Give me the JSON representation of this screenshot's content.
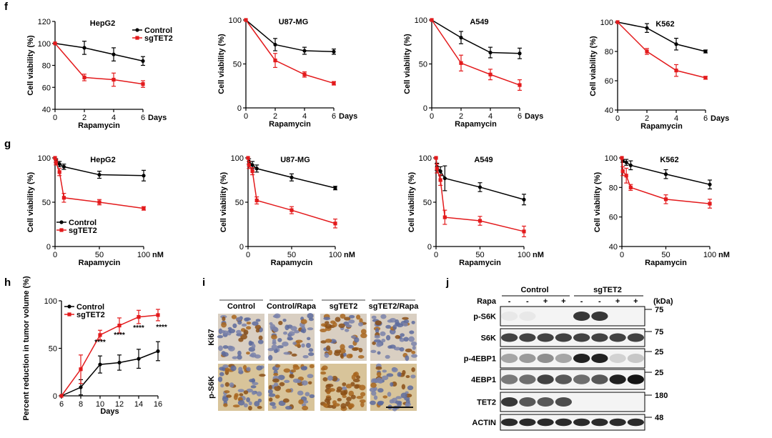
{
  "panel_labels": {
    "f": "f",
    "g": "g",
    "h": "h",
    "i": "i",
    "j": "j"
  },
  "colors": {
    "control": "#000000",
    "sgTET2": "#e31a1c",
    "blot_band": "#1a1a1a",
    "ihc_brown": "#9a5a1a",
    "ihc_blue": "#5a6aa0"
  },
  "chart_data": [
    {
      "id": "f-hepg2",
      "type": "line",
      "title": "HepG2",
      "xlabel": "Rapamycin",
      "ylabel": "Cell viability (%)",
      "x_unit": "Days",
      "x": [
        0,
        2,
        4,
        6
      ],
      "xticks": [
        0,
        2,
        4,
        6
      ],
      "xlim": [
        0,
        6
      ],
      "yticks": [
        40,
        60,
        80,
        100,
        120
      ],
      "ylim": [
        40,
        120
      ],
      "legend": [
        "Control",
        "sgTET2"
      ],
      "legend_position": "top-right",
      "series": [
        {
          "name": "Control",
          "color": "#000000",
          "values": [
            100,
            96,
            90,
            84
          ],
          "err": [
            0,
            6,
            6,
            4
          ]
        },
        {
          "name": "sgTET2",
          "color": "#e31a1c",
          "values": [
            100,
            69,
            67,
            63
          ],
          "err": [
            0,
            3,
            6,
            3
          ]
        }
      ]
    },
    {
      "id": "f-u87",
      "type": "line",
      "title": "U87-MG",
      "xlabel": "Rapamycin",
      "ylabel": "Cell viability (%)",
      "x_unit": "Days",
      "x": [
        0,
        2,
        4,
        6
      ],
      "xticks": [
        0,
        2,
        4,
        6
      ],
      "xlim": [
        0,
        6
      ],
      "yticks": [
        0,
        50,
        100
      ],
      "ylim": [
        0,
        100
      ],
      "legend": [],
      "legend_position": "",
      "series": [
        {
          "name": "Control",
          "color": "#000000",
          "values": [
            100,
            72,
            65,
            64
          ],
          "err": [
            0,
            7,
            4,
            3
          ]
        },
        {
          "name": "sgTET2",
          "color": "#e31a1c",
          "values": [
            100,
            54,
            38,
            28
          ],
          "err": [
            0,
            8,
            3,
            2
          ]
        }
      ]
    },
    {
      "id": "f-a549",
      "type": "line",
      "title": "A549",
      "xlabel": "Rapamycin",
      "ylabel": "Cell viability (%)",
      "x_unit": "Days",
      "x": [
        0,
        2,
        4,
        6
      ],
      "xticks": [
        0,
        2,
        4,
        6
      ],
      "xlim": [
        0,
        6
      ],
      "yticks": [
        0,
        50,
        100
      ],
      "ylim": [
        0,
        100
      ],
      "legend": [],
      "legend_position": "",
      "series": [
        {
          "name": "Control",
          "color": "#000000",
          "values": [
            100,
            80,
            63,
            62
          ],
          "err": [
            0,
            7,
            6,
            6
          ]
        },
        {
          "name": "sgTET2",
          "color": "#e31a1c",
          "values": [
            100,
            51,
            38,
            26
          ],
          "err": [
            0,
            9,
            6,
            6
          ]
        }
      ]
    },
    {
      "id": "f-k562",
      "type": "line",
      "title": "K562",
      "xlabel": "Rapamycin",
      "ylabel": "Cell viability (%)",
      "x_unit": "Days",
      "x": [
        0,
        2,
        4,
        6
      ],
      "xticks": [
        0,
        2,
        4,
        6
      ],
      "xlim": [
        0,
        6
      ],
      "yticks": [
        40,
        60,
        80,
        100
      ],
      "ylim": [
        40,
        100
      ],
      "legend": [],
      "legend_position": "",
      "series": [
        {
          "name": "Control",
          "color": "#000000",
          "values": [
            100,
            96,
            85,
            80
          ],
          "err": [
            0,
            3,
            4,
            1
          ]
        },
        {
          "name": "sgTET2",
          "color": "#e31a1c",
          "values": [
            100,
            80,
            67,
            62
          ],
          "err": [
            0,
            2,
            4,
            1
          ]
        }
      ]
    },
    {
      "id": "g-hepg2",
      "type": "line",
      "title": "HepG2",
      "xlabel": "Rapamycin",
      "ylabel": "Cell viability (%)",
      "x_unit": "nM",
      "x": [
        0,
        1,
        5,
        10,
        50,
        100
      ],
      "xticks": [
        0,
        50,
        100
      ],
      "xlim": [
        0,
        100
      ],
      "yticks": [
        0,
        50,
        100
      ],
      "ylim": [
        0,
        100
      ],
      "legend": [
        "Control",
        "sgTET2"
      ],
      "legend_position": "bottom-left",
      "series": [
        {
          "name": "Control",
          "color": "#000000",
          "values": [
            100,
            97,
            93,
            90,
            81,
            80
          ],
          "err": [
            0,
            2,
            3,
            3,
            4,
            6
          ]
        },
        {
          "name": "sgTET2",
          "color": "#e31a1c",
          "values": [
            100,
            95,
            84,
            55,
            50,
            43
          ],
          "err": [
            0,
            3,
            4,
            5,
            3,
            2
          ]
        }
      ]
    },
    {
      "id": "g-u87",
      "type": "line",
      "title": "U87-MG",
      "xlabel": "Rapamycin",
      "ylabel": "Cell viability (%)",
      "x_unit": "nM",
      "x": [
        0,
        1,
        5,
        10,
        50,
        100
      ],
      "xticks": [
        0,
        50,
        100
      ],
      "xlim": [
        0,
        100
      ],
      "yticks": [
        0,
        50,
        100
      ],
      "ylim": [
        0,
        100
      ],
      "legend": [],
      "legend_position": "",
      "series": [
        {
          "name": "Control",
          "color": "#000000",
          "values": [
            100,
            96,
            92,
            88,
            78,
            66
          ],
          "err": [
            0,
            3,
            4,
            4,
            4,
            2
          ]
        },
        {
          "name": "sgTET2",
          "color": "#e31a1c",
          "values": [
            100,
            92,
            85,
            52,
            41,
            26
          ],
          "err": [
            0,
            4,
            4,
            4,
            4,
            5
          ]
        }
      ]
    },
    {
      "id": "g-a549",
      "type": "line",
      "title": "A549",
      "xlabel": "Rapamycin",
      "ylabel": "Cell viability (%)",
      "x_unit": "nM",
      "x": [
        0,
        1,
        5,
        10,
        50,
        100
      ],
      "xticks": [
        0,
        50,
        100
      ],
      "xlim": [
        0,
        100
      ],
      "yticks": [
        0,
        50,
        100
      ],
      "ylim": [
        0,
        100
      ],
      "legend": [],
      "legend_position": "",
      "series": [
        {
          "name": "Control",
          "color": "#000000",
          "values": [
            100,
            90,
            85,
            77,
            67,
            53
          ],
          "err": [
            0,
            4,
            5,
            14,
            5,
            6
          ]
        },
        {
          "name": "sgTET2",
          "color": "#e31a1c",
          "values": [
            100,
            88,
            75,
            33,
            29,
            17
          ],
          "err": [
            0,
            5,
            6,
            8,
            5,
            6
          ]
        }
      ]
    },
    {
      "id": "g-k562",
      "type": "line",
      "title": "K562",
      "xlabel": "Rapamycin",
      "ylabel": "Cell viability (%)",
      "x_unit": "nM",
      "x": [
        0,
        1,
        5,
        10,
        50,
        100
      ],
      "xticks": [
        0,
        50,
        100
      ],
      "xlim": [
        0,
        100
      ],
      "yticks": [
        40,
        60,
        80,
        100
      ],
      "ylim": [
        40,
        100
      ],
      "legend": [],
      "legend_position": "",
      "series": [
        {
          "name": "Control",
          "color": "#000000",
          "values": [
            100,
            98,
            97,
            95,
            89,
            82
          ],
          "err": [
            0,
            1,
            2,
            3,
            3,
            3
          ]
        },
        {
          "name": "sgTET2",
          "color": "#e31a1c",
          "values": [
            100,
            91,
            88,
            80,
            72,
            69
          ],
          "err": [
            0,
            3,
            5,
            2,
            3,
            3
          ]
        }
      ]
    },
    {
      "id": "h-tumor",
      "type": "line",
      "title": "",
      "xlabel": "Days",
      "ylabel": "Percent reduction in tumor volume (%)",
      "x_unit": "",
      "x": [
        6,
        8,
        10,
        12,
        14,
        16
      ],
      "xticks": [
        6,
        8,
        10,
        12,
        14,
        16
      ],
      "xlim": [
        6,
        16
      ],
      "yticks": [
        0,
        50,
        100
      ],
      "ylim": [
        0,
        100
      ],
      "legend": [
        "Control",
        "sgTET2"
      ],
      "legend_position": "top-left",
      "series": [
        {
          "name": "Control",
          "color": "#000000",
          "values": [
            0,
            9,
            33,
            35,
            39,
            47
          ],
          "err": [
            0,
            8,
            9,
            8,
            10,
            10
          ]
        },
        {
          "name": "sgTET2",
          "color": "#e31a1c",
          "values": [
            0,
            28,
            64,
            74,
            83,
            85
          ],
          "err": [
            0,
            15,
            5,
            8,
            7,
            6
          ]
        }
      ],
      "annotations": [
        "****",
        "****",
        "****",
        "****"
      ],
      "annotation_x": [
        10,
        12,
        14,
        16
      ]
    }
  ],
  "ihc": {
    "columns": [
      "Control",
      "Control/Rapa",
      "sgTET2",
      "sgTET2/Rapa"
    ],
    "rows": [
      "Ki67",
      "p-S6K"
    ]
  },
  "western": {
    "groups": [
      "Control",
      "sgTET2"
    ],
    "rapa_label": "Rapa",
    "rapa_signs": [
      "-",
      "-",
      "+",
      "+",
      "-",
      "-",
      "+",
      "+"
    ],
    "kda_label": "(kDa)",
    "rows": [
      {
        "label": "p-S6K",
        "marker": "75",
        "intensity": [
          0.05,
          0.05,
          0.0,
          0.0,
          0.85,
          0.85,
          0.0,
          0.0
        ]
      },
      {
        "label": "S6K",
        "marker": "75",
        "intensity": [
          0.8,
          0.8,
          0.8,
          0.8,
          0.8,
          0.8,
          0.8,
          0.8
        ]
      },
      {
        "label": "p-4EBP1",
        "marker": "25",
        "intensity": [
          0.35,
          0.4,
          0.45,
          0.35,
          0.95,
          0.95,
          0.15,
          0.2
        ]
      },
      {
        "label": "4EBP1",
        "marker": "25",
        "intensity": [
          0.55,
          0.6,
          0.8,
          0.7,
          0.6,
          0.7,
          0.95,
          1.0
        ]
      },
      {
        "label": "TET2",
        "marker": "180",
        "intensity": [
          0.85,
          0.7,
          0.7,
          0.75,
          0.0,
          0.0,
          0.0,
          0.0
        ]
      },
      {
        "label": "ACTIN",
        "marker": "48",
        "intensity": [
          0.9,
          0.9,
          0.9,
          0.9,
          0.9,
          0.9,
          0.9,
          0.9
        ]
      }
    ]
  }
}
